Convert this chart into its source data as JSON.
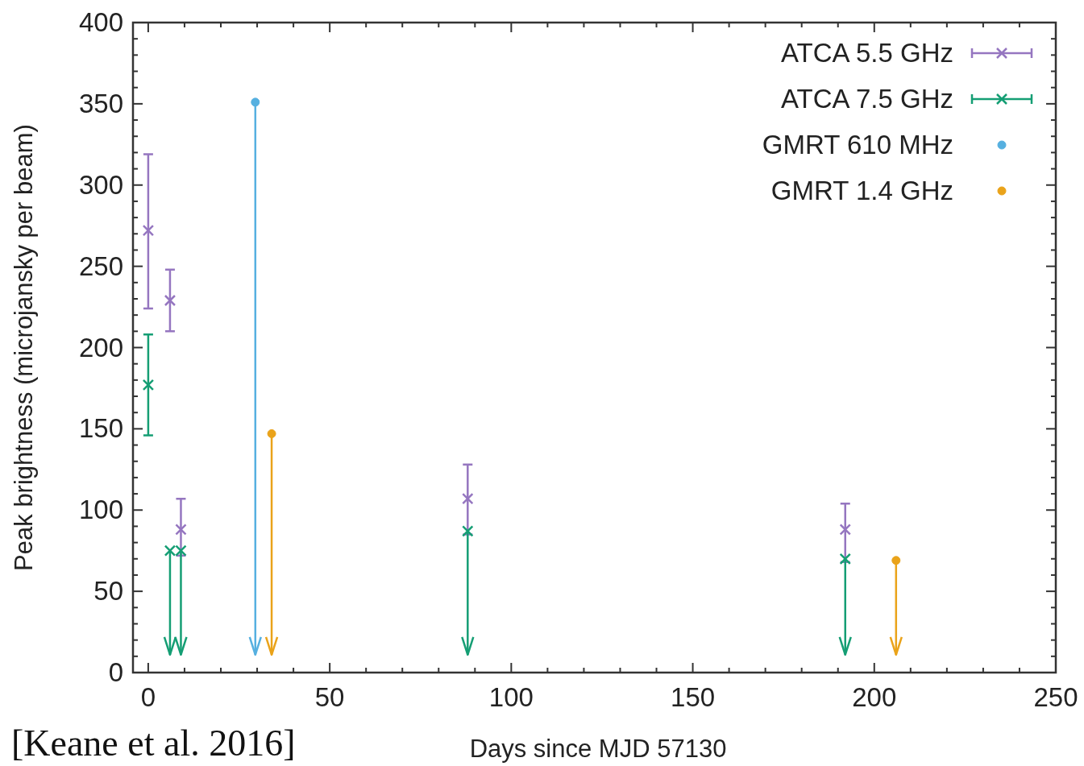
{
  "chart_data": {
    "type": "scatter",
    "xlabel": "Days since MJD 57130",
    "ylabel": "Peak brightness (microjansky per beam)",
    "annotations": [
      "[Keane et al.  2016]"
    ],
    "xlim": [
      -4.2,
      250
    ],
    "ylim": [
      0,
      400
    ],
    "xticks": [
      0,
      {
        "value": 10,
        "label": null
      },
      {
        "value": 20,
        "label": null
      },
      {
        "value": 30,
        "label": null
      },
      {
        "value": 40,
        "label": null
      },
      50,
      {
        "value": 60,
        "label": null
      },
      {
        "value": 70,
        "label": null
      },
      {
        "value": 80,
        "label": null
      },
      {
        "value": 90,
        "label": null
      },
      100,
      {
        "value": 110,
        "label": null
      },
      {
        "value": 120,
        "label": null
      },
      {
        "value": 130,
        "label": null
      },
      {
        "value": 140,
        "label": null
      },
      150,
      {
        "value": 160,
        "label": null
      },
      {
        "value": 170,
        "label": null
      },
      {
        "value": 180,
        "label": null
      },
      {
        "value": 190,
        "label": null
      },
      200,
      {
        "value": 210,
        "label": null
      },
      {
        "value": 220,
        "label": null
      },
      {
        "value": 230,
        "label": null
      },
      {
        "value": 240,
        "label": null
      },
      250
    ],
    "yticks": [
      0,
      {
        "value": 10,
        "label": null
      },
      {
        "value": 20,
        "label": null
      },
      {
        "value": 30,
        "label": null
      },
      {
        "value": 40,
        "label": null
      },
      50,
      {
        "value": 60,
        "label": null
      },
      {
        "value": 70,
        "label": null
      },
      {
        "value": 80,
        "label": null
      },
      {
        "value": 90,
        "label": null
      },
      100,
      {
        "value": 110,
        "label": null
      },
      {
        "value": 120,
        "label": null
      },
      {
        "value": 130,
        "label": null
      },
      {
        "value": 140,
        "label": null
      },
      150,
      {
        "value": 160,
        "label": null
      },
      {
        "value": 170,
        "label": null
      },
      {
        "value": 180,
        "label": null
      },
      {
        "value": 190,
        "label": null
      },
      200,
      {
        "value": 210,
        "label": null
      },
      {
        "value": 220,
        "label": null
      },
      {
        "value": 230,
        "label": null
      },
      {
        "value": 240,
        "label": null
      },
      250,
      {
        "value": 260,
        "label": null
      },
      {
        "value": 270,
        "label": null
      },
      {
        "value": 280,
        "label": null
      },
      {
        "value": 290,
        "label": null
      },
      300,
      {
        "value": 310,
        "label": null
      },
      {
        "value": 320,
        "label": null
      },
      {
        "value": 330,
        "label": null
      },
      {
        "value": 340,
        "label": null
      },
      350,
      {
        "value": 360,
        "label": null
      },
      {
        "value": 370,
        "label": null
      },
      {
        "value": 380,
        "label": null
      },
      {
        "value": 390,
        "label": null
      },
      400
    ],
    "grid": false,
    "legend": "top right",
    "series": [
      {
        "name": "ATCA 5.5 GHz",
        "color": "#9576c0",
        "marker": "cross",
        "x": [
          0,
          6,
          9,
          88,
          192
        ],
        "values": [
          272,
          229,
          88,
          107,
          88
        ],
        "errors": [
          [
            224,
            319
          ],
          [
            210,
            248
          ],
          [
            72,
            107
          ],
          [
            85,
            128
          ],
          [
            68,
            104
          ]
        ]
      },
      {
        "name": "ATCA 7.5 GHz",
        "color": "#159e74",
        "marker": "cross",
        "x": [
          0,
          6,
          9,
          88,
          192
        ],
        "values": [
          177,
          75,
          75,
          87,
          70
        ],
        "errors": [
          [
            146,
            208
          ],
          [
            11,
            75
          ],
          [
            11,
            75
          ],
          [
            11,
            87
          ],
          [
            11,
            70
          ]
        ]
      },
      {
        "name": "GMRT 610 MHz",
        "color": "#56b0e0",
        "marker": "circle",
        "x": [
          29.5
        ],
        "values": [
          351
        ],
        "errors": [
          [
            11,
            351
          ]
        ]
      },
      {
        "name": "GMRT 1.4 GHz",
        "color": "#eaa31a",
        "marker": "circle",
        "x": [
          34,
          206
        ],
        "values": [
          147,
          69
        ],
        "errors": [
          [
            11,
            147
          ],
          [
            11,
            69
          ]
        ]
      }
    ]
  }
}
